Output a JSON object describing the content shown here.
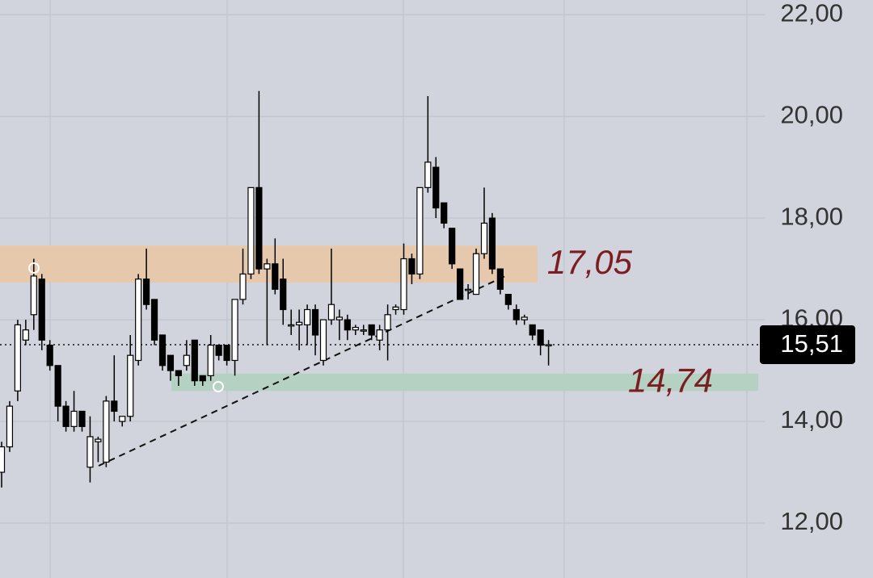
{
  "chart_data": {
    "type": "candlestick",
    "categories": [
      null,
      null,
      null,
      null,
      null,
      null,
      null,
      null,
      null,
      null,
      null,
      null,
      null,
      null,
      null,
      null,
      null,
      null,
      null,
      null,
      null,
      null,
      null,
      null,
      null,
      null,
      null,
      null,
      null,
      null,
      null,
      null,
      null,
      null,
      null,
      null,
      null,
      null,
      null,
      null,
      null,
      null,
      null,
      null,
      null,
      null,
      null,
      null,
      null,
      null,
      null,
      null,
      null,
      null,
      null,
      null,
      null,
      null,
      null,
      null,
      null,
      null,
      null,
      null,
      null,
      null,
      null,
      null,
      null
    ],
    "open": [
      13.0,
      13.5,
      14.6,
      15.6,
      16.1,
      16.8,
      15.5,
      15.1,
      14.3,
      13.9,
      14.2,
      13.1,
      13.6,
      13.2,
      14.4,
      14.0,
      14.1,
      15.2,
      16.8,
      16.4,
      15.7,
      15.3,
      15.0,
      15.1,
      15.6,
      14.9,
      14.9,
      15.5,
      15.5,
      15.2,
      16.4,
      16.9,
      18.6,
      17.0,
      17.1,
      16.8,
      15.9,
      15.9,
      15.9,
      16.2,
      15.2,
      16.0,
      16.0,
      16.0,
      15.8,
      15.8,
      15.9,
      15.6,
      15.8,
      16.2,
      16.2,
      17.2,
      16.9,
      18.6,
      19.0,
      18.3,
      17.8,
      17.0,
      16.6,
      16.5,
      17.3,
      18.0,
      17.0,
      16.5,
      16.2,
      16.0,
      15.9,
      15.8,
      15.5
    ],
    "high": [
      13.6,
      14.4,
      16.0,
      16.0,
      17.2,
      16.9,
      15.6,
      15.1,
      14.4,
      14.6,
      14.2,
      14.1,
      13.7,
      14.5,
      15.3,
      14.1,
      15.7,
      16.9,
      17.4,
      16.4,
      15.7,
      15.3,
      15.0,
      15.6,
      15.6,
      14.9,
      15.7,
      15.5,
      15.5,
      16.4,
      17.4,
      18.6,
      20.5,
      17.2,
      17.6,
      17.2,
      16.2,
      16.2,
      16.3,
      16.3,
      16.0,
      17.4,
      16.2,
      16.1,
      15.9,
      15.9,
      15.9,
      15.9,
      16.3,
      16.3,
      17.5,
      17.3,
      18.6,
      20.4,
      19.2,
      18.3,
      17.8,
      17.0,
      16.7,
      17.4,
      18.6,
      18.1,
      17.0,
      16.5,
      16.3,
      16.1,
      15.9,
      15.8,
      15.6
    ],
    "low": [
      12.7,
      13.4,
      14.4,
      15.5,
      15.8,
      15.4,
      15.0,
      14.0,
      13.8,
      13.8,
      13.8,
      12.8,
      13.2,
      13.1,
      14.0,
      13.9,
      14.0,
      15.1,
      16.2,
      15.5,
      15.0,
      14.8,
      14.7,
      15.0,
      14.7,
      14.7,
      14.8,
      15.2,
      15.1,
      14.9,
      16.3,
      16.8,
      16.9,
      15.5,
      16.5,
      15.9,
      15.7,
      15.4,
      15.5,
      15.3,
      15.1,
      15.9,
      15.6,
      15.6,
      15.7,
      15.7,
      15.6,
      15.4,
      15.2,
      16.1,
      16.1,
      16.7,
      16.8,
      18.5,
      18.0,
      17.8,
      17.0,
      16.4,
      16.4,
      16.5,
      17.2,
      16.9,
      16.5,
      16.2,
      15.9,
      15.9,
      15.6,
      15.3,
      15.1
    ],
    "close": [
      13.5,
      14.3,
      15.9,
      15.8,
      16.86,
      15.6,
      15.1,
      14.3,
      13.9,
      14.2,
      13.9,
      13.7,
      13.65,
      14.4,
      14.2,
      14.1,
      15.3,
      16.8,
      16.3,
      15.6,
      15.1,
      15.0,
      14.9,
      15.3,
      14.8,
      14.8,
      15.5,
      15.3,
      15.2,
      16.4,
      16.9,
      18.6,
      17.0,
      17.1,
      16.6,
      16.2,
      15.9,
      15.95,
      16.2,
      15.7,
      16.0,
      16.3,
      16.05,
      15.8,
      15.85,
      15.8,
      15.7,
      15.8,
      16.1,
      16.25,
      17.2,
      16.9,
      18.6,
      19.1,
      18.2,
      17.9,
      17.1,
      16.4,
      16.6,
      17.3,
      17.9,
      17.0,
      16.6,
      16.3,
      16.0,
      16.05,
      15.7,
      15.5,
      15.51
    ],
    "up_color": "#ffffff",
    "down_color": "#000000",
    "ylim": [
      10.92,
      22.29
    ],
    "yticks": [
      {
        "value": 12,
        "label": "12,00"
      },
      {
        "value": 14,
        "label": "14,00"
      },
      {
        "value": 16,
        "label": "16,00"
      },
      {
        "value": 18,
        "label": "18,00"
      },
      {
        "value": 20,
        "label": "20,00"
      },
      {
        "value": 22,
        "label": "22,00"
      }
    ],
    "grid": true,
    "last_price": {
      "value": 15.51,
      "label": "15,51"
    },
    "zones": [
      {
        "from": 16.73,
        "to": 17.46,
        "color": "#e6c9ac",
        "level": {
          "value": 17.05,
          "label": "17,05"
        }
      },
      {
        "from": 14.6,
        "to": 14.94,
        "color": "#b5d1c1",
        "level": {
          "value": 14.74,
          "label": "14,74"
        }
      }
    ]
  }
}
